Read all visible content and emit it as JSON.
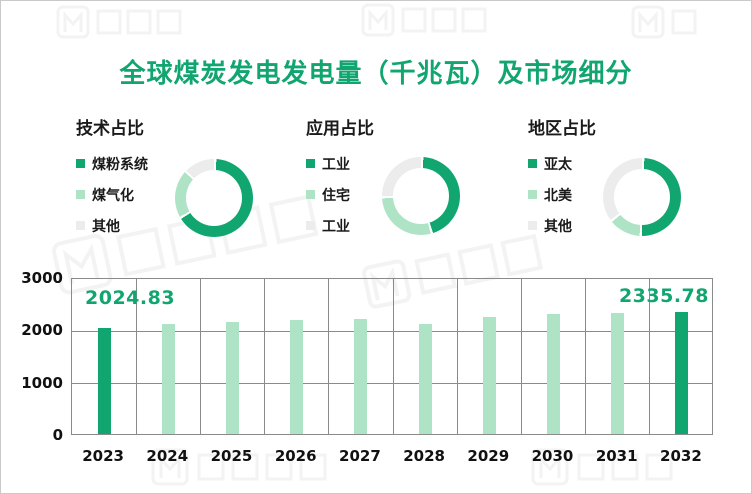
{
  "page": {
    "title": "全球煤炭发电发电量（千兆瓦）及市场细分"
  },
  "colors": {
    "primary_green": "#11A56F",
    "light_green": "#AEE4C5",
    "muted_gray": "#ECECEC",
    "grid_gray": "#8A8A8A",
    "text_black": "#1A1A1A"
  },
  "chart_data": [
    {
      "type": "pie",
      "donut": true,
      "title": "技术占比",
      "labels": [
        "煤粉系统",
        "煤气化",
        "其他"
      ],
      "values": [
        66,
        20.5,
        13.5
      ],
      "unit": "%",
      "colors": [
        "#11A56F",
        "#AEE4C5",
        "#ECECEC"
      ],
      "legend_position": "left"
    },
    {
      "type": "pie",
      "donut": true,
      "title": "应用占比",
      "labels": [
        "工业",
        "住宅",
        "工业"
      ],
      "values": [
        45,
        29,
        26
      ],
      "unit": "%",
      "colors": [
        "#11A56F",
        "#AEE4C5",
        "#ECECEC"
      ],
      "legend_position": "left"
    },
    {
      "type": "pie",
      "donut": true,
      "title": "地区占比",
      "labels": [
        "亚太",
        "北美",
        "其他"
      ],
      "values": [
        50,
        14,
        36
      ],
      "unit": "%",
      "colors": [
        "#11A56F",
        "#AEE4C5",
        "#ECECEC"
      ],
      "legend_position": "left"
    },
    {
      "type": "bar",
      "title": "全球煤炭发电发电量（千兆瓦）",
      "categories": [
        "2023",
        "2024",
        "2025",
        "2026",
        "2027",
        "2028",
        "2029",
        "2030",
        "2031",
        "2032"
      ],
      "values": [
        2024.83,
        2105,
        2142,
        2181,
        2192,
        2096,
        2244,
        2288,
        2308,
        2335.78
      ],
      "ylim": [
        0,
        3000
      ],
      "yticks": [
        0,
        1000,
        2000,
        3000
      ],
      "ytick_labels": [
        "0",
        "1000",
        "2000",
        "3000"
      ],
      "grid": true,
      "bar_color": "#AEE4C5",
      "highlight_color": "#11A56F",
      "highlight_indices": [
        0,
        9
      ],
      "data_labels": {
        "first": "2024.83",
        "last": "2335.78"
      }
    }
  ]
}
